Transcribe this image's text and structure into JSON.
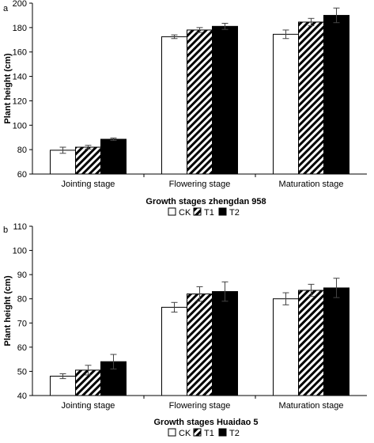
{
  "chart_data": [
    {
      "type": "bar",
      "panel_label": "a",
      "xlabel": "Growth stages zhengdan 958",
      "ylabel": "Plant height (cm)",
      "ylim": [
        60,
        200
      ],
      "yticks": [
        60,
        80,
        100,
        120,
        140,
        160,
        180,
        200
      ],
      "categories": [
        "Jointing stage",
        "Flowering stage",
        "Maturation stage"
      ],
      "series": [
        {
          "name": "CK",
          "pattern": "white",
          "values": [
            79.5,
            172.5,
            174.5
          ],
          "errors": [
            2.5,
            1.5,
            3.5
          ]
        },
        {
          "name": "T1",
          "pattern": "hatched",
          "values": [
            82,
            178,
            184.5
          ],
          "errors": [
            1.5,
            2,
            3
          ]
        },
        {
          "name": "T2",
          "pattern": "black",
          "values": [
            88.5,
            181,
            190
          ],
          "errors": [
            1,
            2.5,
            6
          ]
        }
      ],
      "legend": {
        "position": "bottom-right",
        "entries": [
          "CK",
          "T1",
          "T2"
        ]
      },
      "grid": false
    },
    {
      "type": "bar",
      "panel_label": "b",
      "xlabel": "Growth stages Huaidao 5",
      "ylabel": "Plant height (cm)",
      "ylim": [
        40,
        110
      ],
      "yticks": [
        40,
        50,
        60,
        70,
        80,
        90,
        100,
        110
      ],
      "categories": [
        "Jointing stage",
        "Flowering stage",
        "Maturation stage"
      ],
      "series": [
        {
          "name": "CK",
          "pattern": "white",
          "values": [
            48,
            76.5,
            80
          ],
          "errors": [
            1,
            2,
            2.5
          ]
        },
        {
          "name": "T1",
          "pattern": "hatched",
          "values": [
            50.5,
            82,
            83.5
          ],
          "errors": [
            2,
            3,
            2.5
          ]
        },
        {
          "name": "T2",
          "pattern": "black",
          "values": [
            54,
            83,
            84.5
          ],
          "errors": [
            3,
            4,
            4
          ]
        }
      ],
      "legend": {
        "position": "bottom-right",
        "entries": [
          "CK",
          "T1",
          "T2"
        ]
      },
      "grid": false
    }
  ]
}
